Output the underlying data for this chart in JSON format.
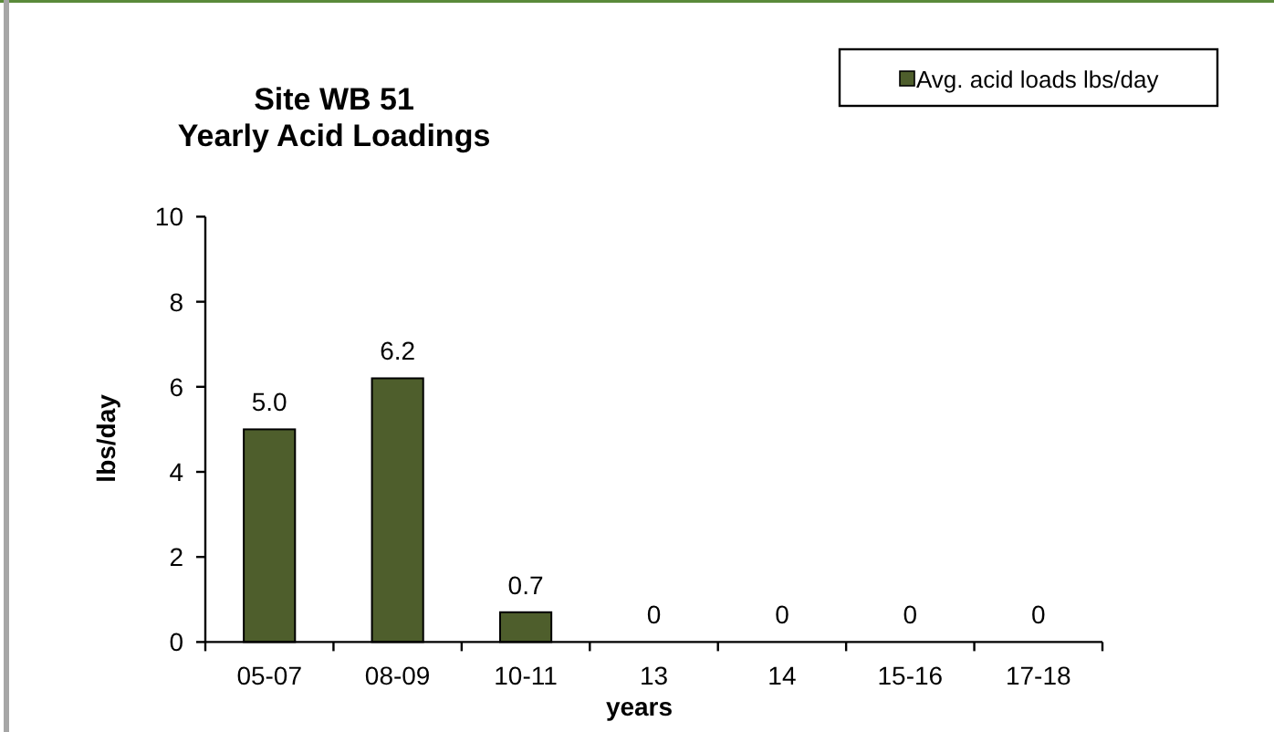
{
  "chart_data": {
    "type": "bar",
    "title": "Site WB 51\nYearly Acid Loadings",
    "xlabel": "years",
    "ylabel": "lbs/day",
    "categories": [
      "05-07",
      "08-09",
      "10-11",
      "13",
      "14",
      "15-16",
      "17-18"
    ],
    "series": [
      {
        "name": "Avg. acid loads lbs/day",
        "color": "#4e5e2c",
        "values": [
          5.0,
          6.2,
          0.7,
          0,
          0,
          0,
          0
        ],
        "value_labels": [
          "5.0",
          "6.2",
          "0.7",
          "0",
          "0",
          "0",
          "0"
        ]
      }
    ],
    "ylim": [
      0,
      10
    ],
    "yticks": [
      0,
      2,
      4,
      6,
      8,
      10
    ],
    "legend": "top right"
  }
}
